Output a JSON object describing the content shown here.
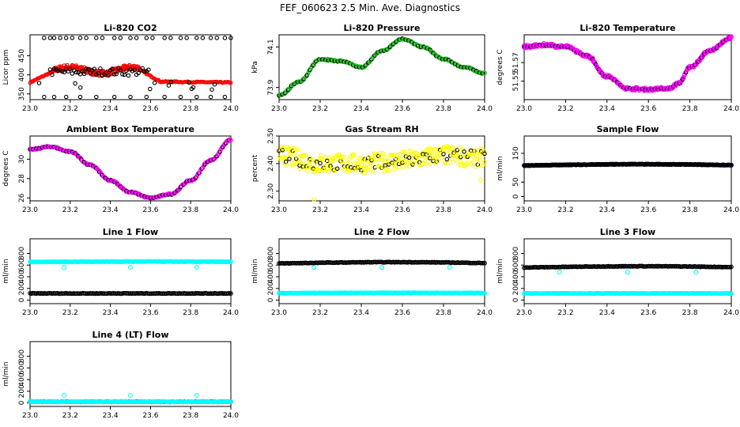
{
  "figure_title": "FEF_060623  2.5 Min. Ave. Diagnostics",
  "colors": {
    "red": "#ff0000",
    "green": "#22bb22",
    "magenta": "#ff00ff",
    "yellow": "#ffff00",
    "cyan": "#00ffff",
    "navy": "#000080",
    "black": "#000000"
  },
  "chart_data": [
    {
      "type": "scatter",
      "title": "Li-820 CO2",
      "ylabel": "Licor ppm",
      "xlim": [
        23.0,
        24.0
      ],
      "ylim": [
        335,
        505
      ],
      "yticks": [
        "350",
        "400",
        "450"
      ],
      "ytick_values": [
        350,
        400,
        450
      ],
      "xticks": [
        "23.0",
        "23.2",
        "23.4",
        "23.6",
        "23.8",
        "24.0"
      ],
      "grid": false,
      "series": [
        {
          "name": "fill",
          "color": "red",
          "shape": "co2"
        },
        {
          "name": "overlay",
          "color": "black",
          "shape": "co2_black"
        }
      ]
    },
    {
      "type": "scatter",
      "title": "Li-820 Pressure",
      "ylabel": "kPa",
      "xlim": [
        23.0,
        24.0
      ],
      "ylim": [
        73.84,
        74.16
      ],
      "yticks": [
        "73.9",
        "74.1"
      ],
      "ytick_values": [
        73.9,
        74.1
      ],
      "xticks": [
        "23.0",
        "23.2",
        "23.4",
        "23.6",
        "23.8",
        "24.0"
      ],
      "grid": false,
      "series": [
        {
          "name": "fill",
          "color": "green",
          "shape": "pressure"
        },
        {
          "name": "overlay",
          "color": "black",
          "shape": "pressure"
        }
      ],
      "curve": [
        [
          23.0,
          73.86
        ],
        [
          23.1,
          73.93
        ],
        [
          23.2,
          74.04
        ],
        [
          23.3,
          74.03
        ],
        [
          23.4,
          74.0
        ],
        [
          23.5,
          74.08
        ],
        [
          23.6,
          74.14
        ],
        [
          23.7,
          74.1
        ],
        [
          23.8,
          74.04
        ],
        [
          23.9,
          74.0
        ],
        [
          24.0,
          73.97
        ]
      ]
    },
    {
      "type": "scatter",
      "title": "Li-820 Temperature",
      "ylabel": "degrees C",
      "xlim": [
        23.0,
        24.0
      ],
      "ylim": [
        51.53,
        51.6
      ],
      "yticks": [
        "51.55",
        "51.57"
      ],
      "ytick_values": [
        51.55,
        51.57
      ],
      "xticks": [
        "23.0",
        "23.2",
        "23.4",
        "23.6",
        "23.8",
        "24.0"
      ],
      "grid": false,
      "series": [
        {
          "name": "fill",
          "color": "magenta"
        },
        {
          "name": "overlay",
          "color": "black"
        }
      ],
      "curve": [
        [
          23.0,
          51.587
        ],
        [
          23.1,
          51.589
        ],
        [
          23.2,
          51.587
        ],
        [
          23.3,
          51.578
        ],
        [
          23.4,
          51.555
        ],
        [
          23.5,
          51.542
        ],
        [
          23.6,
          51.541
        ],
        [
          23.7,
          51.542
        ],
        [
          23.75,
          51.548
        ],
        [
          23.8,
          51.565
        ],
        [
          23.9,
          51.583
        ],
        [
          24.0,
          51.597
        ]
      ]
    },
    {
      "type": "scatter",
      "title": "Ambient Box Temperature",
      "ylabel": "degrees C",
      "xlim": [
        23.0,
        24.0
      ],
      "ylim": [
        25.7,
        32.4
      ],
      "yticks": [
        "26",
        "28",
        "30"
      ],
      "ytick_values": [
        26,
        28,
        30
      ],
      "xticks": [
        "23.0",
        "23.2",
        "23.4",
        "23.6",
        "23.8",
        "24.0"
      ],
      "grid": false,
      "series": [
        {
          "name": "fill",
          "color": "magenta"
        },
        {
          "name": "overlay",
          "color": "black"
        }
      ],
      "curve": [
        [
          23.0,
          31.0
        ],
        [
          23.1,
          31.3
        ],
        [
          23.2,
          30.8
        ],
        [
          23.3,
          29.4
        ],
        [
          23.4,
          27.8
        ],
        [
          23.5,
          26.6
        ],
        [
          23.6,
          26.0
        ],
        [
          23.7,
          26.4
        ],
        [
          23.8,
          27.8
        ],
        [
          23.9,
          29.9
        ],
        [
          24.0,
          32.0
        ]
      ]
    },
    {
      "type": "scatter",
      "title": "Gas Stream RH",
      "ylabel": "percent",
      "xlim": [
        23.0,
        24.0
      ],
      "ylim": [
        2.265,
        2.5
      ],
      "yticks": [
        "2.30",
        "2.40",
        "2.50"
      ],
      "ytick_values": [
        2.3,
        2.4,
        2.5
      ],
      "xticks": [
        "23.0",
        "23.2",
        "23.4",
        "23.6",
        "23.8",
        "24.0"
      ],
      "grid": false,
      "series": [
        {
          "name": "fill",
          "color": "yellow"
        },
        {
          "name": "overlay",
          "color": "black"
        }
      ],
      "curve": [
        [
          23.0,
          2.43
        ],
        [
          23.2,
          2.4
        ],
        [
          23.4,
          2.4
        ],
        [
          23.6,
          2.41
        ],
        [
          23.8,
          2.43
        ],
        [
          24.0,
          2.42
        ]
      ]
    },
    {
      "type": "scatter",
      "title": "Sample Flow",
      "ylabel": "ml/min",
      "xlim": [
        23.0,
        24.0
      ],
      "ylim": [
        -15,
        210
      ],
      "yticks": [
        "0",
        "50",
        "150"
      ],
      "ytick_values": [
        0,
        50,
        150
      ],
      "xticks": [
        "23.0",
        "23.2",
        "23.4",
        "23.6",
        "23.8",
        "24.0"
      ],
      "grid": false,
      "series": [
        {
          "name": "fill",
          "color": "navy",
          "level": [
            108,
            112
          ]
        },
        {
          "name": "overlay",
          "color": "black",
          "level": [
            108,
            112
          ]
        }
      ]
    },
    {
      "type": "scatter",
      "title": "Line 1 Flow",
      "ylabel": "ml/min",
      "xlim": [
        23.0,
        24.0
      ],
      "ylim": [
        -60,
        1050
      ],
      "yticks": [
        "0",
        "200",
        "400",
        "600",
        "800"
      ],
      "ytick_values": [
        0,
        200,
        400,
        600,
        800
      ],
      "xticks": [
        "23.0",
        "23.2",
        "23.4",
        "23.6",
        "23.8",
        "24.0"
      ],
      "grid": false,
      "series": [
        {
          "name": "high",
          "color": "cyan",
          "level": [
            655,
            660
          ]
        },
        {
          "name": "low",
          "color": "black",
          "level": [
            115,
            115
          ]
        }
      ],
      "outliers": [
        [
          23.17,
          560
        ],
        [
          23.5,
          560
        ],
        [
          23.83,
          560
        ]
      ]
    },
    {
      "type": "scatter",
      "title": "Line 2 Flow",
      "ylabel": "ml/min",
      "xlim": [
        23.0,
        24.0
      ],
      "ylim": [
        -60,
        1050
      ],
      "yticks": [
        "0",
        "200",
        "400",
        "600",
        "800"
      ],
      "ytick_values": [
        0,
        200,
        400,
        600,
        800
      ],
      "xticks": [
        "23.0",
        "23.2",
        "23.4",
        "23.6",
        "23.8",
        "24.0"
      ],
      "grid": false,
      "series": [
        {
          "name": "high",
          "color": "black",
          "level": [
            630,
            650
          ]
        },
        {
          "name": "low",
          "color": "cyan",
          "level": [
            120,
            125
          ]
        }
      ],
      "outliers": [
        [
          23.17,
          560
        ],
        [
          23.5,
          560
        ],
        [
          23.83,
          560
        ]
      ]
    },
    {
      "type": "scatter",
      "title": "Line 3 Flow",
      "ylabel": "ml/min",
      "xlim": [
        23.0,
        24.0
      ],
      "ylim": [
        -60,
        1050
      ],
      "yticks": [
        "0",
        "200",
        "400",
        "600",
        "800"
      ],
      "ytick_values": [
        0,
        200,
        400,
        600,
        800
      ],
      "xticks": [
        "23.0",
        "23.2",
        "23.4",
        "23.6",
        "23.8",
        "24.0"
      ],
      "grid": false,
      "series": [
        {
          "name": "high",
          "color": "black",
          "level": [
            560,
            580
          ]
        },
        {
          "name": "low",
          "color": "cyan",
          "level": [
            115,
            115
          ]
        }
      ],
      "outliers": [
        [
          23.17,
          480
        ],
        [
          23.5,
          480
        ],
        [
          23.83,
          480
        ]
      ]
    },
    {
      "type": "scatter",
      "title": "Line 4 (LT) Flow",
      "ylabel": "ml/min",
      "xlim": [
        23.0,
        24.0
      ],
      "ylim": [
        -60,
        1050
      ],
      "yticks": [
        "0",
        "200",
        "400",
        "600",
        "800"
      ],
      "ytick_values": [
        0,
        200,
        400,
        600,
        800
      ],
      "xticks": [
        "23.0",
        "23.2",
        "23.4",
        "23.6",
        "23.8",
        "24.0"
      ],
      "grid": false,
      "series": [
        {
          "name": "base",
          "color": "black",
          "level": [
            20,
            20
          ]
        },
        {
          "name": "base2",
          "color": "cyan",
          "level": [
            20,
            20
          ]
        }
      ],
      "outliers": [
        [
          23.17,
          130
        ],
        [
          23.5,
          130
        ],
        [
          23.83,
          130
        ]
      ]
    }
  ]
}
